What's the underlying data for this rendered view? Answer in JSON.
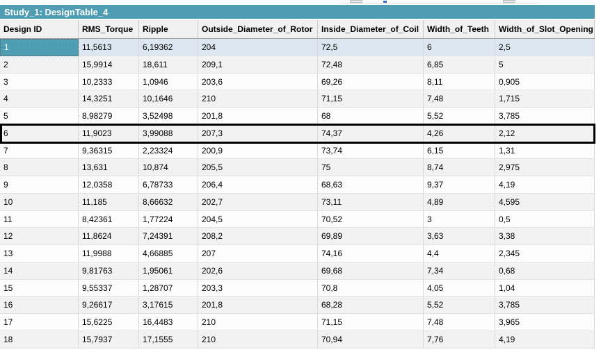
{
  "table": {
    "title": "Study_1: DesignTable_4",
    "selected_row_id": "1",
    "highlighted_row_id": "6",
    "colors": {
      "title_bar": "#4E9DB2",
      "selected_cell": "#4E9DB2",
      "selected_row_tint": "#DCE6F0",
      "row_alternate": "#F2F2F2",
      "highlight_border": "#000000"
    },
    "columns": [
      {
        "key": "design_id",
        "label": "Design ID",
        "sort": "asc",
        "sort_glyph": "ˆ"
      },
      {
        "key": "rms_torque",
        "label": "RMS_Torque"
      },
      {
        "key": "ripple",
        "label": "Ripple"
      },
      {
        "key": "outside_diameter_of_rotor",
        "label": "Outside_Diameter_of_Rotor"
      },
      {
        "key": "inside_diameter_of_coil",
        "label": "Inside_Diameter_of_Coil"
      },
      {
        "key": "width_of_teeth",
        "label": "Width_of_Teeth"
      },
      {
        "key": "width_of_slot_opening",
        "label": "Width_of_Slot_Opening"
      }
    ],
    "rows": [
      {
        "design_id": "1",
        "rms_torque": "11,5613",
        "ripple": "6,19362",
        "outside_diameter_of_rotor": "204",
        "inside_diameter_of_coil": "72,5",
        "width_of_teeth": "6",
        "width_of_slot_opening": "2,5"
      },
      {
        "design_id": "2",
        "rms_torque": "15,9914",
        "ripple": "18,611",
        "outside_diameter_of_rotor": "209,1",
        "inside_diameter_of_coil": "72,48",
        "width_of_teeth": "6,85",
        "width_of_slot_opening": "5"
      },
      {
        "design_id": "3",
        "rms_torque": "10,2333",
        "ripple": "1,0946",
        "outside_diameter_of_rotor": "203,6",
        "inside_diameter_of_coil": "69,26",
        "width_of_teeth": "8,11",
        "width_of_slot_opening": "0,905"
      },
      {
        "design_id": "4",
        "rms_torque": "14,3251",
        "ripple": "10,1646",
        "outside_diameter_of_rotor": "210",
        "inside_diameter_of_coil": "71,15",
        "width_of_teeth": "7,48",
        "width_of_slot_opening": "1,715"
      },
      {
        "design_id": "5",
        "rms_torque": "8,98279",
        "ripple": "3,52498",
        "outside_diameter_of_rotor": "201,8",
        "inside_diameter_of_coil": "68",
        "width_of_teeth": "5,52",
        "width_of_slot_opening": "3,785"
      },
      {
        "design_id": "6",
        "rms_torque": "11,9023",
        "ripple": "3,99088",
        "outside_diameter_of_rotor": "207,3",
        "inside_diameter_of_coil": "74,37",
        "width_of_teeth": "4,26",
        "width_of_slot_opening": "2,12"
      },
      {
        "design_id": "7",
        "rms_torque": "9,36315",
        "ripple": "2,23324",
        "outside_diameter_of_rotor": "200,9",
        "inside_diameter_of_coil": "73,74",
        "width_of_teeth": "6,15",
        "width_of_slot_opening": "1,31"
      },
      {
        "design_id": "8",
        "rms_torque": "13,631",
        "ripple": "10,874",
        "outside_diameter_of_rotor": "205,5",
        "inside_diameter_of_coil": "75",
        "width_of_teeth": "8,74",
        "width_of_slot_opening": "2,975"
      },
      {
        "design_id": "9",
        "rms_torque": "12,0358",
        "ripple": "6,78733",
        "outside_diameter_of_rotor": "206,4",
        "inside_diameter_of_coil": "68,63",
        "width_of_teeth": "9,37",
        "width_of_slot_opening": "4,19"
      },
      {
        "design_id": "10",
        "rms_torque": "11,185",
        "ripple": "8,66632",
        "outside_diameter_of_rotor": "202,7",
        "inside_diameter_of_coil": "73,11",
        "width_of_teeth": "4,89",
        "width_of_slot_opening": "4,595"
      },
      {
        "design_id": "11",
        "rms_torque": "8,42361",
        "ripple": "1,77224",
        "outside_diameter_of_rotor": "204,5",
        "inside_diameter_of_coil": "70,52",
        "width_of_teeth": "3",
        "width_of_slot_opening": "0,5"
      },
      {
        "design_id": "12",
        "rms_torque": "11,8624",
        "ripple": "7,24391",
        "outside_diameter_of_rotor": "208,2",
        "inside_diameter_of_coil": "69,89",
        "width_of_teeth": "3,63",
        "width_of_slot_opening": "3,38"
      },
      {
        "design_id": "13",
        "rms_torque": "11,9988",
        "ripple": "4,66885",
        "outside_diameter_of_rotor": "207",
        "inside_diameter_of_coil": "74,16",
        "width_of_teeth": "4,4",
        "width_of_slot_opening": "2,345"
      },
      {
        "design_id": "14",
        "rms_torque": "9,81763",
        "ripple": "1,95061",
        "outside_diameter_of_rotor": "202,6",
        "inside_diameter_of_coil": "69,68",
        "width_of_teeth": "7,34",
        "width_of_slot_opening": "0,68"
      },
      {
        "design_id": "15",
        "rms_torque": "9,55337",
        "ripple": "1,28707",
        "outside_diameter_of_rotor": "203,3",
        "inside_diameter_of_coil": "70,8",
        "width_of_teeth": "4,05",
        "width_of_slot_opening": "1,04"
      },
      {
        "design_id": "16",
        "rms_torque": "9,26617",
        "ripple": "3,17615",
        "outside_diameter_of_rotor": "201,8",
        "inside_diameter_of_coil": "68,28",
        "width_of_teeth": "5,52",
        "width_of_slot_opening": "3,785"
      },
      {
        "design_id": "17",
        "rms_torque": "15,6225",
        "ripple": "16,4483",
        "outside_diameter_of_rotor": "210",
        "inside_diameter_of_coil": "71,15",
        "width_of_teeth": "7,48",
        "width_of_slot_opening": "3,965"
      },
      {
        "design_id": "18",
        "rms_torque": "15,7937",
        "ripple": "17,1555",
        "outside_diameter_of_rotor": "210",
        "inside_diameter_of_coil": "70,94",
        "width_of_teeth": "7,76",
        "width_of_slot_opening": "4,19"
      }
    ]
  }
}
